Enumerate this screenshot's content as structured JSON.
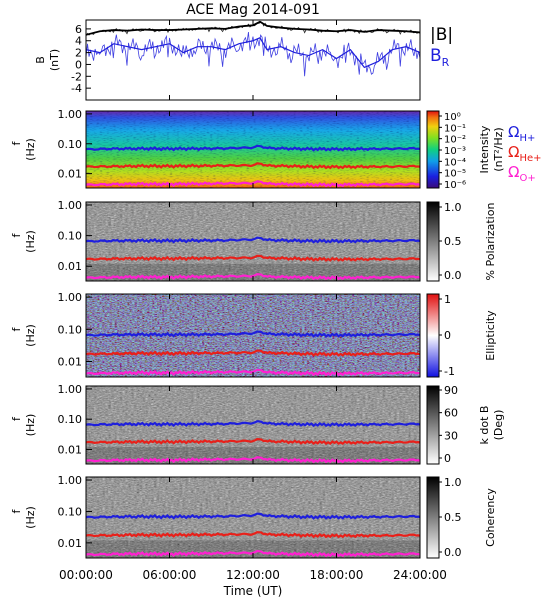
{
  "chart_data": {
    "type": "line",
    "title": "ACE Mag 2014-091",
    "xlabel": "Time (UT)",
    "x_ticks": [
      "00:00:00",
      "06:00:00",
      "12:00:00",
      "18:00:00",
      "24:00:00"
    ],
    "xlim_hours": [
      0,
      24
    ],
    "panels": [
      {
        "id": "b",
        "ylabel": "B",
        "yunit": "(nT)",
        "ylim": [
          -6,
          7.5
        ],
        "y_ticks": [
          "6",
          "4",
          "2",
          "0",
          "-2",
          "-4"
        ],
        "series": [
          {
            "name": "|B|",
            "color": "#000000",
            "x": [
              0,
              1,
              2,
              3,
              4,
              5,
              6,
              7,
              8,
              9,
              10,
              11,
              12,
              12.5,
              13,
              14,
              15,
              16,
              17,
              18,
              19,
              20,
              21,
              22,
              23,
              24
            ],
            "y": [
              5.0,
              5.6,
              5.8,
              5.7,
              5.9,
              5.8,
              5.8,
              5.9,
              6.0,
              6.1,
              6.0,
              6.4,
              6.6,
              7.2,
              6.5,
              6.2,
              6.0,
              5.9,
              5.7,
              5.6,
              5.8,
              5.5,
              5.8,
              5.7,
              5.6,
              5.4
            ]
          },
          {
            "name": "B",
            "subscript": "R",
            "color": "#1f1fdc",
            "x": [
              0,
              1,
              2,
              3,
              4,
              5,
              6,
              7,
              8,
              9,
              10,
              11,
              12,
              12.5,
              13,
              14,
              15,
              16,
              17,
              18,
              19,
              20,
              21,
              22,
              23,
              24
            ],
            "y": [
              2.5,
              2.0,
              3.5,
              3.0,
              2.5,
              3.0,
              3.5,
              2.0,
              3.0,
              3.0,
              2.5,
              3.5,
              4.0,
              4.5,
              2.5,
              3.0,
              2.0,
              1.5,
              2.5,
              1.0,
              2.5,
              -0.5,
              0.5,
              2.5,
              3.0,
              2.0
            ]
          }
        ]
      },
      {
        "id": "intensity",
        "ylabel": "f",
        "yunit": "(Hz)",
        "y_ticks": [
          "1.00",
          "0.10",
          "0.01"
        ],
        "colorbar_label": "Intensity",
        "colorbar_unit": "(nT²/Hz)",
        "colorbar_ticks": [
          "10⁰",
          "10⁻¹",
          "10⁻²",
          "10⁻³",
          "10⁻⁴",
          "10⁻⁵",
          "10⁻⁶"
        ]
      },
      {
        "id": "polarization",
        "ylabel": "f",
        "yunit": "(Hz)",
        "y_ticks": [
          "1.00",
          "0.10",
          "0.01"
        ],
        "colorbar_label": "% Polarization",
        "colorbar_unit": "",
        "colorbar_ticks": [
          "1.0",
          "0.5",
          "0.0"
        ]
      },
      {
        "id": "ellipticity",
        "ylabel": "f",
        "yunit": "(Hz)",
        "y_ticks": [
          "1.00",
          "0.10",
          "0.01"
        ],
        "colorbar_label": "Ellipticity",
        "colorbar_unit": "",
        "colorbar_ticks": [
          "1",
          "0",
          "-1"
        ]
      },
      {
        "id": "kdotb",
        "ylabel": "f",
        "yunit": "(Hz)",
        "y_ticks": [
          "1.00",
          "0.10",
          "0.01"
        ],
        "colorbar_label": "k dot B",
        "colorbar_unit": "(Deg)",
        "colorbar_ticks": [
          "90",
          "60",
          "30",
          "0"
        ]
      },
      {
        "id": "coherency",
        "ylabel": "f",
        "yunit": "(Hz)",
        "y_ticks": [
          "1.00",
          "0.10",
          "0.01"
        ],
        "colorbar_label": "Coherency",
        "colorbar_unit": "",
        "colorbar_ticks": [
          "1.0",
          "0.5",
          "0.0"
        ]
      }
    ],
    "gyro_lines": [
      {
        "ion": "H+",
        "color": "#1f1fdc",
        "x": [
          0,
          2,
          4,
          6,
          8,
          10,
          12,
          12.5,
          13,
          14,
          16,
          18,
          20,
          22,
          24
        ],
        "y": [
          0.065,
          0.068,
          0.069,
          0.068,
          0.069,
          0.07,
          0.075,
          0.085,
          0.072,
          0.07,
          0.067,
          0.066,
          0.067,
          0.068,
          0.07
        ]
      },
      {
        "ion": "He+",
        "color": "#e8201a",
        "x": [
          0,
          2,
          4,
          6,
          8,
          10,
          12,
          12.5,
          13,
          14,
          16,
          18,
          20,
          22,
          24
        ],
        "y": [
          0.017,
          0.0175,
          0.018,
          0.0178,
          0.0182,
          0.0185,
          0.019,
          0.022,
          0.0185,
          0.0182,
          0.0172,
          0.0168,
          0.017,
          0.0172,
          0.0178
        ]
      },
      {
        "ion": "O+",
        "color": "#ff20d0",
        "x": [
          0,
          2,
          4,
          6,
          8,
          10,
          12,
          12.5,
          13,
          14,
          16,
          18,
          20,
          22,
          24
        ],
        "y": [
          0.0042,
          0.0044,
          0.0045,
          0.0044,
          0.0046,
          0.0047,
          0.0048,
          0.0055,
          0.0046,
          0.0045,
          0.0043,
          0.0042,
          0.0043,
          0.0044,
          0.0045
        ]
      }
    ],
    "legend": [
      {
        "symbol": "Ω",
        "sub": "H+",
        "color": "#1f1fdc"
      },
      {
        "symbol": "Ω",
        "sub": "He+",
        "color": "#e8201a"
      },
      {
        "symbol": "Ω",
        "sub": "O+",
        "color": "#ff20d0"
      }
    ]
  }
}
